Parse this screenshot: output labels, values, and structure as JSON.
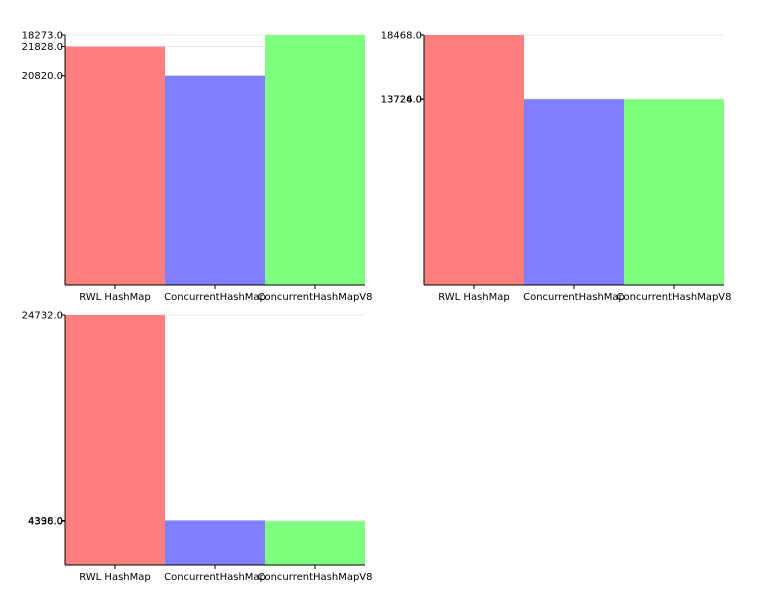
{
  "colors": [
    "#ff7f7f",
    "#7f7fff",
    "#7fff7f"
  ],
  "chart_data": [
    {
      "type": "bar",
      "categories": [
        "RWL HashMap",
        "ConcurrentHashMap",
        "ConcurrentHashMapV8"
      ],
      "values": [
        20820,
        18273,
        21828
      ],
      "tick_labels": [
        "21828.0",
        "20820.0",
        "18273.0"
      ],
      "ylim": [
        0,
        21828
      ]
    },
    {
      "type": "bar",
      "categories": [
        "RWL HashMap",
        "ConcurrentHashMap",
        "ConcurrentHashMapV8"
      ],
      "values": [
        18468,
        13726,
        13724
      ],
      "tick_labels": [
        "18468.0",
        "13726.0",
        "13724.0"
      ],
      "ylim": [
        0,
        18468
      ]
    },
    {
      "type": "bar",
      "categories": [
        "RWL HashMap",
        "ConcurrentHashMap",
        "ConcurrentHashMapV8"
      ],
      "values": [
        24732,
        4398,
        4336
      ],
      "tick_labels": [
        "24732.0",
        "4398.0",
        "4336.0"
      ],
      "ylim": [
        0,
        24732
      ]
    }
  ]
}
